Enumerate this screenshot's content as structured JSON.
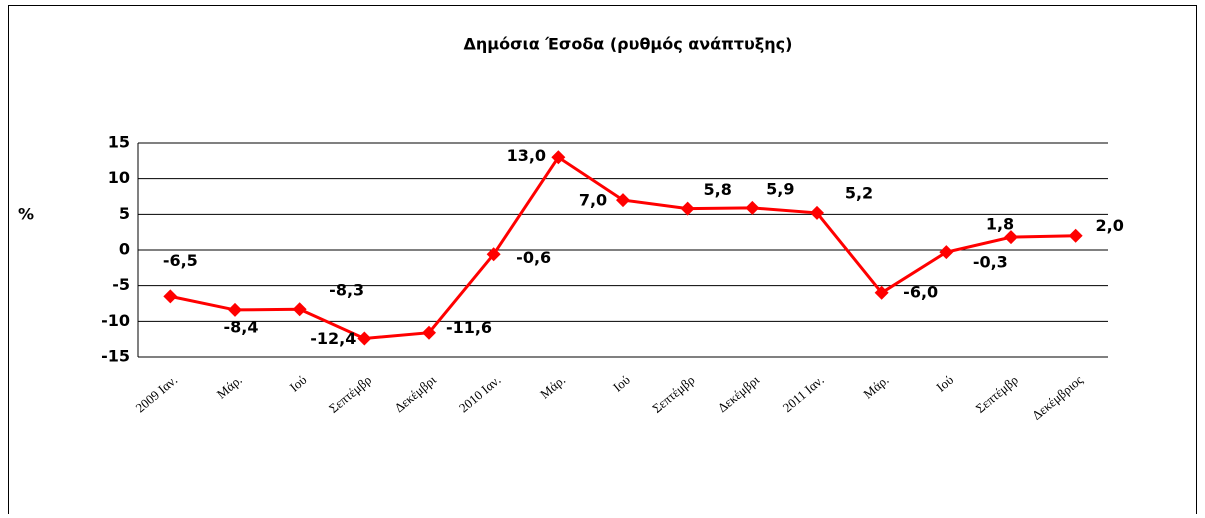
{
  "chart_data": {
    "type": "line",
    "title": "Δημόσια Έσοδα (ρυθμός ανάπτυξης)",
    "ylabel": "%",
    "categories": [
      "2009 Ιαν.",
      "Μάρ.",
      "Ιού",
      "Σεπτέμβρ",
      "Δεκέμβρι",
      "2010 Ιαν.",
      "Μάρ.",
      "Ιού",
      "Σεπτέμβρ",
      "Δεκέμβρι",
      "2011 Ιαν.",
      "Μάρ.",
      "Ιού",
      "Σεπτέμβρ",
      "Δεκέμβριος"
    ],
    "series": [
      {
        "name": "Δημόσια Έσοδα",
        "color": "#ff0000",
        "values": [
          -6.5,
          -8.4,
          -8.3,
          -12.4,
          -11.6,
          -0.6,
          13.0,
          7.0,
          5.8,
          5.9,
          5.2,
          -6.0,
          -0.3,
          1.8,
          2.0
        ],
        "value_labels": [
          "-6,5",
          "-8,4",
          "-8,3",
          "-12,4",
          "-11,6",
          "-0,6",
          "13,0",
          "7,0",
          "5,8",
          "5,9",
          "5,2",
          "-6,0",
          "-0,3",
          "1,8",
          "2,0"
        ]
      }
    ],
    "ylim": [
      -15,
      15
    ],
    "yticks": [
      15,
      10,
      5,
      0,
      -5,
      -10,
      -15
    ],
    "grid": true
  }
}
